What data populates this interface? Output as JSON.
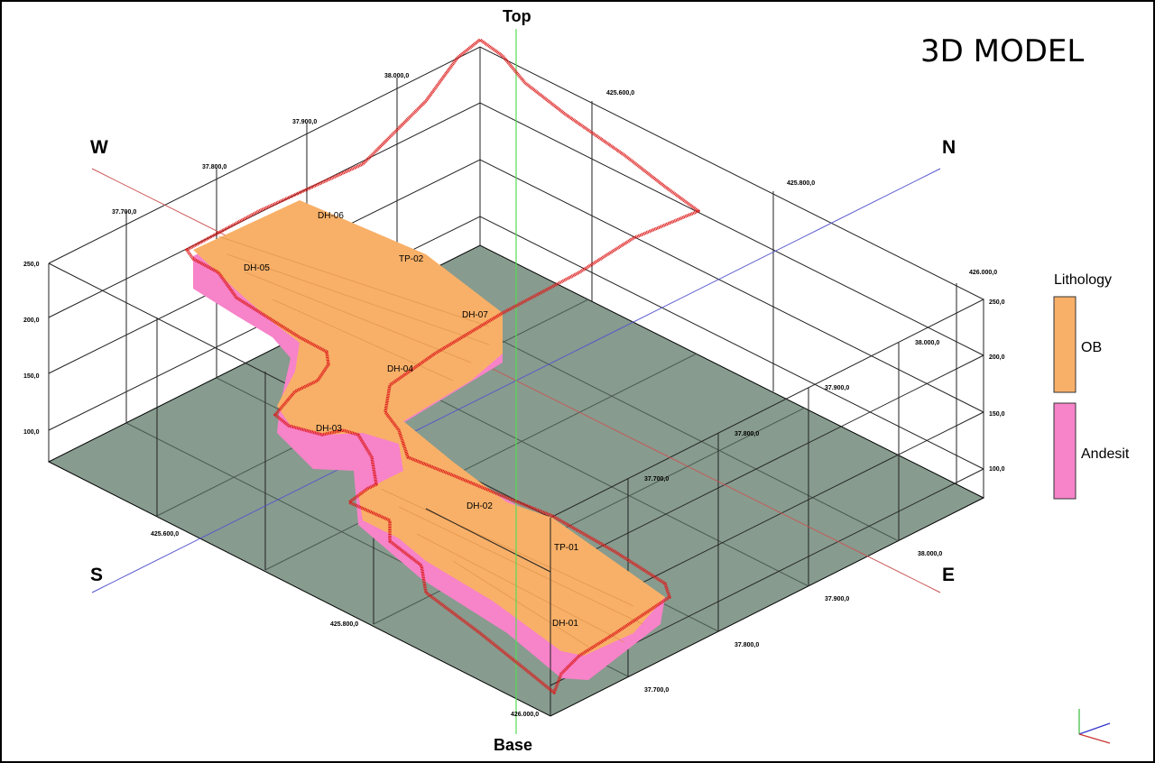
{
  "title": "3D MODEL",
  "axes": {
    "top": "Top",
    "base": "Base",
    "west": "W",
    "north": "N",
    "south": "S",
    "east": "E"
  },
  "legend": {
    "title": "Lithology",
    "items": [
      {
        "label": "OB",
        "color": "#f8b068"
      },
      {
        "label": "Andesit",
        "color": "#f783c9"
      }
    ]
  },
  "drillholes": [
    "DH-06",
    "TP-02",
    "DH-05",
    "DH-07",
    "DH-04",
    "DH-03",
    "DH-02",
    "TP-01",
    "DH-01"
  ],
  "ticks": {
    "left_elev": [
      "250,0",
      "200,0",
      "150,0",
      "100,0"
    ],
    "right_elev": [
      "250,0",
      "200,0",
      "150,0",
      "100,0"
    ],
    "top_west": [
      "37.700,0",
      "37.800,0",
      "37.900,0",
      "38.000,0"
    ],
    "top_north": [
      "425.600,0",
      "425.800,0",
      "426.000,0"
    ],
    "bottom_south": [
      "425.600,0",
      "425.800,0",
      "426.000,0"
    ],
    "bottom_east": [
      "38.000,0",
      "37.900,0",
      "37.800,0",
      "37.700,0"
    ],
    "right_mid": [
      "38.000,0",
      "37.900,0",
      "37.800,0",
      "37.700,0"
    ]
  },
  "colors": {
    "floor": "#879b8e",
    "ob": "#f8b068",
    "andesit": "#f783c9",
    "boundary": "#dd1a1a",
    "vertical_axis": "#55dd55",
    "ns_axis": "#5555cc",
    "we_axis": "#cc5555"
  }
}
